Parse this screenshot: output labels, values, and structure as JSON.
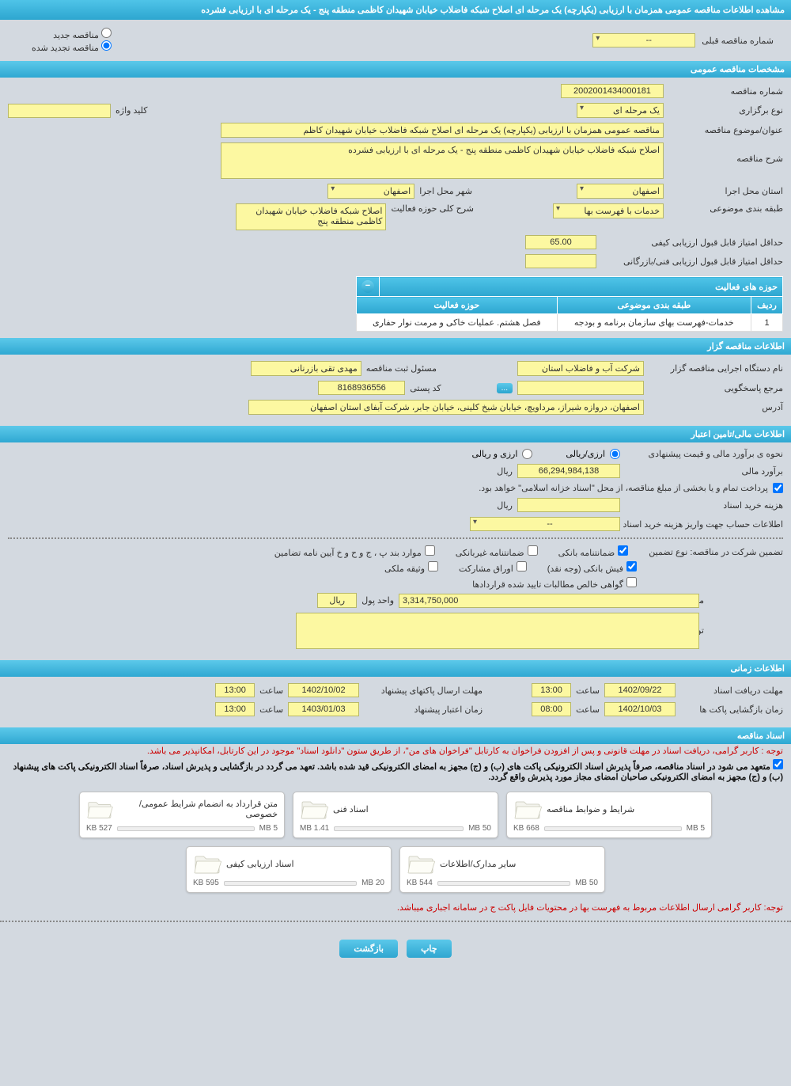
{
  "header": {
    "title": "مشاهده اطلاعات مناقصه عمومی همزمان با ارزیابی (یکپارچه) یک مرحله ای اصلاح شبکه فاضلاب خیابان شهیدان کاظمی منطقه پنج - یک مرحله ای با ارزیابی فشرده"
  },
  "radios": {
    "new_tender": "مناقصه جدید",
    "renewed_tender": "مناقصه تجدید شده",
    "prev_number_label": "شماره مناقصه قبلی",
    "prev_number_value": "--"
  },
  "sections": {
    "general": "مشخصات مناقصه عمومی",
    "organizer": "اطلاعات مناقصه گزار",
    "financial": "اطلاعات مالی/تامین اعتبار",
    "time": "اطلاعات زمانی",
    "documents": "اسناد مناقصه"
  },
  "general": {
    "tender_number_label": "شماره مناقصه",
    "tender_number": "2002001434000181",
    "type_label": "نوع برگزاری",
    "type_value": "یک مرحله ای",
    "keyword_label": "کلید واژه",
    "keyword_value": "",
    "subject_label": "عنوان/موضوع مناقصه",
    "subject_value": "مناقصه عمومی همزمان با ارزیابی (یکپارچه) یک مرحله ای اصلاح شبکه فاضلاب خیابان شهیدان کاظم",
    "desc_label": "شرح مناقصه",
    "desc_value": "اصلاح شبکه فاضلاب خیابان شهیدان کاظمی منطقه پنج  - یک مرحله ای با ارزیابی فشرده",
    "province_label": "استان محل اجرا",
    "province_value": "اصفهان",
    "city_label": "شهر محل اجرا",
    "city_value": "اصفهان",
    "category_label": "طبقه بندی موضوعی",
    "category_value": "خدمات با فهرست بها",
    "activity_desc_label": "شرح کلی حوزه فعالیت",
    "activity_desc_value": "اصلاح شبکه فاضلاب خیابان شهیدان کاظمی منطقه پنج",
    "min_score_label": "حداقل امتیاز قابل قبول ارزیابی کیفی",
    "min_score_value": "65.00",
    "min_score_fin_label": "حداقل امتیاز قابل قبول ارزیابی فنی/بازرگانی",
    "min_score_fin_value": ""
  },
  "activities": {
    "header": "حوزه های فعالیت",
    "col_row": "ردیف",
    "col_cat": "طبقه بندی موضوعی",
    "col_field": "حوزه فعالیت",
    "rows": [
      {
        "n": "1",
        "cat": "خدمات-فهرست بهای سازمان برنامه و بودجه",
        "field": "فصل هشتم. عملیات خاکی و مرمت نوار حفاری"
      }
    ]
  },
  "organizer": {
    "org_label": "نام دستگاه اجرایی مناقصه گزار",
    "org_value": "شرکت آب و فاضلاب استان",
    "resp_person_label": "مسئول ثبت مناقصه",
    "resp_person_value": "مهدی تقی بازرنانی",
    "ref_label": "مرجع پاسخگویی",
    "ref_value": "",
    "more": "...",
    "postal_label": "کد پستی",
    "postal_value": "8168936556",
    "address_label": "آدرس",
    "address_value": "اصفهان، دروازه شیراز، مرداویچ، خیابان شیخ کلینی، خیابان جابر، شرکت آبفای استان اصفهان"
  },
  "financial": {
    "method_label": "نحوه ی برآورد مالی و قیمت پیشنهادی",
    "opt_rial": "ارزی/ریالی",
    "opt_currency": "ارزی و ریالی",
    "estimate_label": "برآورد مالی",
    "estimate_value": "66,294,984,138",
    "unit_rial": "ریال",
    "treasury_note": "پرداخت تمام و یا بخشی از مبلغ مناقصه، از محل \"اسناد خزانه اسلامی\" خواهد بود.",
    "doc_cost_label": "هزینه خرید اسناد",
    "doc_cost_value": "",
    "account_label": "اطلاعات حساب جهت واریز هزینه خرید اسناد",
    "account_value": "--",
    "guarantee_type_label": "تضمین شرکت در مناقصه:   نوع تضمین",
    "chk_bank_guarantee": "ضمانتنامه بانکی",
    "chk_nonbank_guarantee": "ضمانتنامه غیربانکی",
    "chk_regulation": "موارد بند پ ، ج و ح و خ آیین نامه تضامین",
    "chk_cash": "فیش بانکی (وجه نقد)",
    "chk_bonds": "اوراق مشارکت",
    "chk_property": "وثیقه ملکی",
    "chk_receivables": "گواهی خالص مطالبات تایید شده قراردادها",
    "guarantee_amount_label": "مبلغ تضمین",
    "guarantee_amount_value": "3,314,750,000",
    "money_unit_label": "واحد پول",
    "money_unit_value": "ریال",
    "remarks_label": "توضیحات",
    "remarks_value": ""
  },
  "time": {
    "doc_deadline_label": "مهلت دریافت اسناد",
    "doc_deadline_date": "1402/09/22",
    "doc_deadline_time_label": "ساعت",
    "doc_deadline_time": "13:00",
    "submit_deadline_label": "مهلت ارسال پاکتهای پیشنهاد",
    "submit_deadline_date": "1402/10/02",
    "submit_deadline_time": "13:00",
    "open_label": "زمان بازگشایی پاکت ها",
    "open_date": "1402/10/03",
    "open_time": "08:00",
    "validity_label": "زمان اعتبار پیشنهاد",
    "validity_date": "1403/01/03",
    "validity_time": "13:00"
  },
  "documents": {
    "note1": "توجه : کاربر گرامی، دریافت اسناد در مهلت قانونی و پس از افزودن فراخوان به کارتابل \"فراخوان های من\"، از طریق ستون \"دانلود اسناد\" موجود در این کارتابل، امکانپذیر می باشد.",
    "note2": "متعهد می شود در اسناد مناقصه، صرفاً پذیرش اسناد الکترونیکی پاکت های (ب) و (ج) مجهز به امضای الکترونیکی قید شده باشد. تعهد می گردد در بازگشایی و پذیرش اسناد، صرفاً اسناد الکترونیکی پاکت های پیشنهاد (ب) و (ج) مجهز به امضای الکترونیکی صاحبان امضای مجاز مورد پذیرش واقع گردد.",
    "note3": "توجه: کاربر گرامی ارسال اطلاعات مربوط به فهرست بها در محتویات فایل پاکت ج در سامانه اجباری میباشد.",
    "cards": [
      {
        "title": "شرایط و ضوابط مناقصه",
        "used": "668 KB",
        "limit": "5 MB",
        "pct": 13
      },
      {
        "title": "اسناد فنی",
        "used": "1.41 MB",
        "limit": "50 MB",
        "pct": 3
      },
      {
        "title": "متن قرارداد به انضمام شرایط عمومی/خصوصی",
        "used": "527 KB",
        "limit": "5 MB",
        "pct": 11
      },
      {
        "title": "سایر مدارک/اطلاعات",
        "used": "544 KB",
        "limit": "50 MB",
        "pct": 1
      },
      {
        "title": "اسناد ارزیابی کیفی",
        "used": "595 KB",
        "limit": "20 MB",
        "pct": 3
      }
    ]
  },
  "buttons": {
    "print": "چاپ",
    "back": "بازگشت"
  },
  "colors": {
    "header_bg": "#37b0d6",
    "yellow": "#fcf8a1",
    "body_bg": "#d3d9e0",
    "red": "#c00",
    "green_bar": "#7cc829"
  }
}
